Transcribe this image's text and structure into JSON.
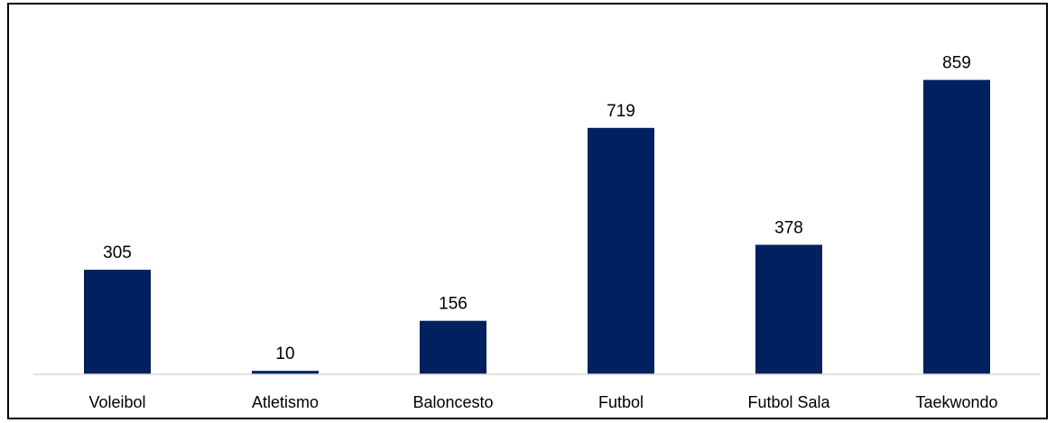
{
  "chart_data": {
    "type": "bar",
    "title": "",
    "xlabel": "",
    "ylabel": "",
    "categories": [
      "Voleibol",
      "Atletismo",
      "Baloncesto",
      "Futbol",
      "Futbol Sala",
      "Taekwondo"
    ],
    "values": [
      305,
      10,
      156,
      719,
      378,
      859
    ],
    "data_labels": [
      "305",
      "10",
      "156",
      "719",
      "378",
      "859"
    ],
    "ylim": [
      0,
      1000
    ],
    "grid": false,
    "legend": "none",
    "bar_color": "#002060",
    "axis_color": "#d9d9d9"
  }
}
